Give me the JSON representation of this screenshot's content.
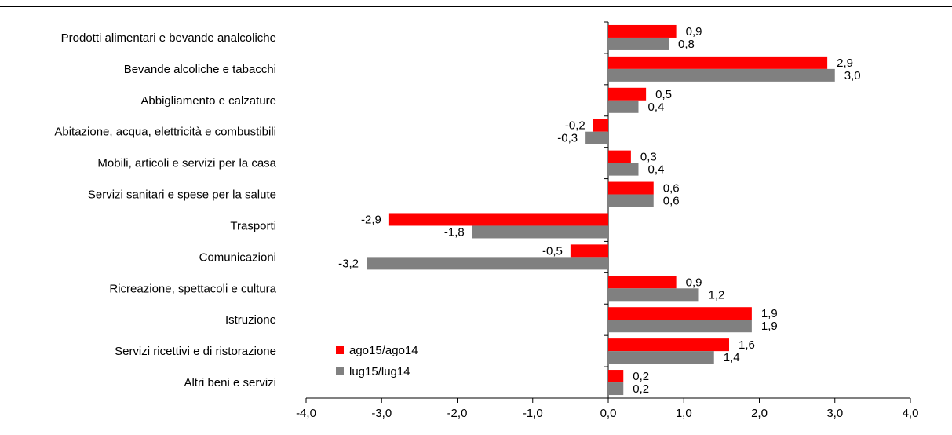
{
  "chart_data": {
    "type": "bar",
    "orientation": "horizontal",
    "categories": [
      "Prodotti alimentari e bevande analcoliche",
      "Bevande alcoliche e tabacchi",
      "Abbigliamento e calzature",
      "Abitazione, acqua, elettricità e combustibili",
      "Mobili, articoli e servizi per la casa",
      "Servizi sanitari e spese per la salute",
      "Trasporti",
      "Comunicazioni",
      "Ricreazione, spettacoli e cultura",
      "Istruzione",
      "Servizi ricettivi e di ristorazione",
      "Altri beni e servizi"
    ],
    "series": [
      {
        "name": "ago15/ago14",
        "color": "#ff0000",
        "values": [
          0.9,
          2.9,
          0.5,
          -0.2,
          0.3,
          0.6,
          -2.9,
          -0.5,
          0.9,
          1.9,
          1.6,
          0.2
        ],
        "labels": [
          "0,9",
          "2,9",
          "0,5",
          "-0,2",
          "0,3",
          "0,6",
          "-2,9",
          "-0,5",
          "0,9",
          "1,9",
          "1,6",
          "0,2"
        ]
      },
      {
        "name": "lug15/lug14",
        "color": "#808080",
        "values": [
          0.8,
          3.0,
          0.4,
          -0.3,
          0.4,
          0.6,
          -1.8,
          -3.2,
          1.2,
          1.9,
          1.4,
          0.2
        ],
        "labels": [
          "0,8",
          "3,0",
          "0,4",
          "-0,3",
          "0,4",
          "0,6",
          "-1,8",
          "-3,2",
          "1,2",
          "1,9",
          "1,4",
          "0,2"
        ]
      }
    ],
    "xlim": [
      -4.0,
      4.0
    ],
    "xticks": [
      -4.0,
      -3.0,
      -2.0,
      -1.0,
      0.0,
      1.0,
      2.0,
      3.0,
      4.0
    ],
    "xtick_labels": [
      "-4,0",
      "-3,0",
      "-2,0",
      "-1,0",
      "0,0",
      "1,0",
      "2,0",
      "3,0",
      "4,0"
    ],
    "grid": false,
    "legend_position": "inside-bottom-left"
  }
}
